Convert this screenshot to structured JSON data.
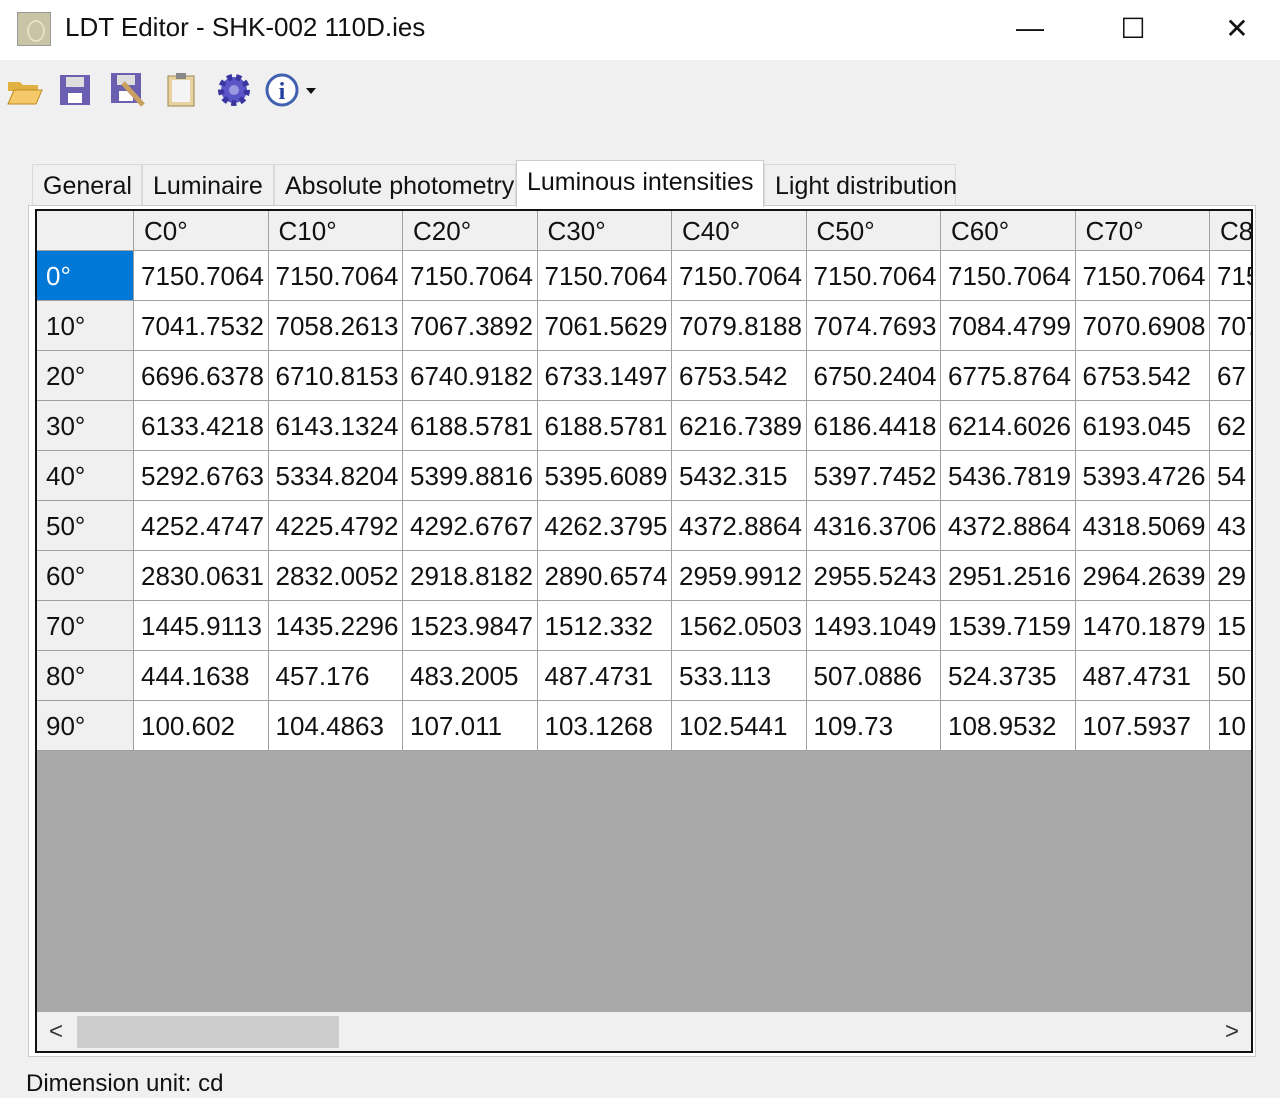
{
  "window": {
    "title": "LDT Editor - SHK-002 110D.ies",
    "minimize": "—",
    "maximize": "☐",
    "close": "✕"
  },
  "toolbar": {
    "icons": [
      "open-folder-icon",
      "save-icon",
      "save-as-icon",
      "clipboard-icon",
      "settings-gear-icon",
      "info-icon"
    ]
  },
  "tabs": [
    {
      "label": "General",
      "active": false
    },
    {
      "label": "Luminaire",
      "active": false
    },
    {
      "label": "Absolute photometry",
      "active": false
    },
    {
      "label": "Luminous intensities",
      "active": true
    },
    {
      "label": "Light distribution",
      "active": false
    }
  ],
  "grid": {
    "columns": [
      "C0°",
      "C10°",
      "C20°",
      "C30°",
      "C40°",
      "C50°",
      "C60°",
      "C70°",
      "C8"
    ],
    "rows": [
      {
        "label": "0°",
        "selected": true,
        "values": [
          "7150.7064",
          "7150.7064",
          "7150.7064",
          "7150.7064",
          "7150.7064",
          "7150.7064",
          "7150.7064",
          "7150.7064",
          "715"
        ]
      },
      {
        "label": "10°",
        "values": [
          "7041.7532",
          "7058.2613",
          "7067.3892",
          "7061.5629",
          "7079.8188",
          "7074.7693",
          "7084.4799",
          "7070.6908",
          "707"
        ]
      },
      {
        "label": "20°",
        "values": [
          "6696.6378",
          "6710.8153",
          "6740.9182",
          "6733.1497",
          "6753.542",
          "6750.2404",
          "6775.8764",
          "6753.542",
          "67"
        ]
      },
      {
        "label": "30°",
        "values": [
          "6133.4218",
          "6143.1324",
          "6188.5781",
          "6188.5781",
          "6216.7389",
          "6186.4418",
          "6214.6026",
          "6193.045",
          "62"
        ]
      },
      {
        "label": "40°",
        "values": [
          "5292.6763",
          "5334.8204",
          "5399.8816",
          "5395.6089",
          "5432.315",
          "5397.7452",
          "5436.7819",
          "5393.4726",
          "54"
        ]
      },
      {
        "label": "50°",
        "values": [
          "4252.4747",
          "4225.4792",
          "4292.6767",
          "4262.3795",
          "4372.8864",
          "4316.3706",
          "4372.8864",
          "4318.5069",
          "43"
        ]
      },
      {
        "label": "60°",
        "values": [
          "2830.0631",
          "2832.0052",
          "2918.8182",
          "2890.6574",
          "2959.9912",
          "2955.5243",
          "2951.2516",
          "2964.2639",
          "29"
        ]
      },
      {
        "label": "70°",
        "values": [
          "1445.9113",
          "1435.2296",
          "1523.9847",
          "1512.332",
          "1562.0503",
          "1493.1049",
          "1539.7159",
          "1470.1879",
          "15"
        ]
      },
      {
        "label": "80°",
        "values": [
          "444.1638",
          "457.176",
          "483.2005",
          "487.4731",
          "533.113",
          "507.0886",
          "524.3735",
          "487.4731",
          "50"
        ]
      },
      {
        "label": "90°",
        "values": [
          "100.602",
          "104.4863",
          "107.011",
          "103.1268",
          "102.5441",
          "109.73",
          "108.9532",
          "107.5937",
          "10"
        ]
      }
    ]
  },
  "scrollbar": {
    "left_arrow": "<",
    "right_arrow": ">",
    "position_percent": 0
  },
  "status": {
    "dimension_unit": "Dimension unit: cd"
  },
  "colors": {
    "selected_row_header": "#0078d7",
    "empty_grid": "#a9a9a9"
  }
}
